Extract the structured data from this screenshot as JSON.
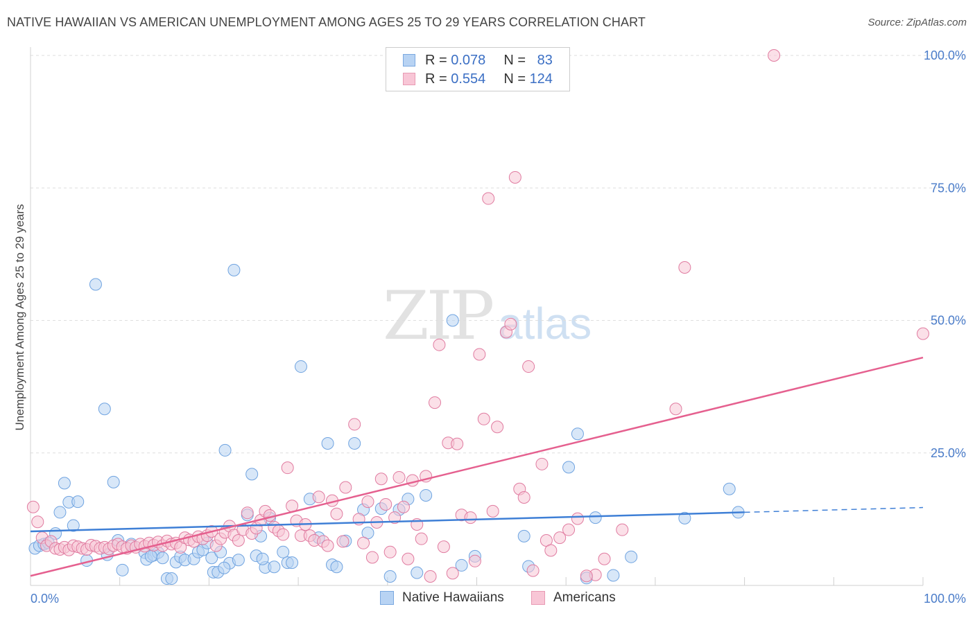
{
  "title": "NATIVE HAWAIIAN VS AMERICAN UNEMPLOYMENT AMONG AGES 25 TO 29 YEARS CORRELATION CHART",
  "source": "Source: ZipAtlas.com",
  "watermark": {
    "zip": "ZIP",
    "atlas": "atlas"
  },
  "legend": {
    "r_label": "R =",
    "n_label": "N =",
    "rows": [
      {
        "r": "0.078",
        "n": "83",
        "fill": "#b8d3f3",
        "stroke": "#7aa8e0"
      },
      {
        "r": "0.554",
        "n": "124",
        "fill": "#f8c6d6",
        "stroke": "#e89ab3"
      }
    ]
  },
  "bottom_legend": [
    {
      "label": "Native Hawaiians",
      "fill": "#b8d3f3",
      "stroke": "#7aa8e0"
    },
    {
      "label": "Americans",
      "fill": "#f8c6d6",
      "stroke": "#e89ab3"
    }
  ],
  "chart_data": {
    "type": "scatter",
    "title": "NATIVE HAWAIIAN VS AMERICAN UNEMPLOYMENT AMONG AGES 25 TO 29 YEARS CORRELATION CHART",
    "xlabel": "",
    "ylabel": "Unemployment Among Ages 25 to 29 years",
    "xlim": [
      0,
      100
    ],
    "ylim": [
      0,
      100
    ],
    "x_tick_labels": [
      "0.0%",
      "100.0%"
    ],
    "y_ticks": [
      25,
      50,
      75,
      100
    ],
    "y_tick_labels": [
      "25.0%",
      "50.0%",
      "75.0%",
      "100.0%"
    ],
    "grid": true,
    "legend_position": "top-center",
    "series": [
      {
        "name": "Native Hawaiians",
        "color": "#6fa3e0",
        "fill": "#b8d3f3",
        "trend": {
          "x0": 0,
          "y0": 10.2,
          "x1": 80,
          "y1": 13.8,
          "dash_to_x": 100,
          "dash_to_y": 14.7,
          "color": "#3e7fd6"
        },
        "points": [
          [
            0.5,
            7.0
          ],
          [
            1.0,
            7.5
          ],
          [
            1.5,
            7.8
          ],
          [
            2.0,
            8.0
          ],
          [
            2.8,
            9.8
          ],
          [
            3.3,
            13.8
          ],
          [
            3.8,
            19.3
          ],
          [
            4.3,
            15.7
          ],
          [
            4.8,
            11.3
          ],
          [
            5.3,
            15.8
          ],
          [
            6.3,
            4.7
          ],
          [
            7.3,
            56.8
          ],
          [
            8.3,
            33.3
          ],
          [
            8.6,
            5.8
          ],
          [
            9.3,
            19.5
          ],
          [
            9.8,
            8.5
          ],
          [
            10.3,
            2.9
          ],
          [
            11.3,
            7.8
          ],
          [
            12.8,
            6.2
          ],
          [
            13.0,
            4.9
          ],
          [
            13.8,
            5.7
          ],
          [
            14.3,
            6.2
          ],
          [
            14.8,
            5.2
          ],
          [
            15.3,
            1.3
          ],
          [
            15.8,
            1.3
          ],
          [
            16.3,
            4.4
          ],
          [
            16.8,
            5.4
          ],
          [
            17.3,
            4.8
          ],
          [
            18.3,
            5.0
          ],
          [
            18.8,
            6.3
          ],
          [
            19.3,
            6.7
          ],
          [
            19.8,
            8.0
          ],
          [
            20.3,
            5.2
          ],
          [
            20.5,
            2.5
          ],
          [
            21.0,
            2.5
          ],
          [
            21.3,
            6.3
          ],
          [
            21.8,
            25.5
          ],
          [
            22.3,
            4.2
          ],
          [
            22.8,
            59.5
          ],
          [
            23.3,
            4.8
          ],
          [
            24.3,
            13.3
          ],
          [
            24.8,
            21.0
          ],
          [
            25.3,
            5.6
          ],
          [
            25.8,
            9.3
          ],
          [
            26.3,
            3.4
          ],
          [
            26.8,
            12.7
          ],
          [
            27.3,
            3.5
          ],
          [
            28.3,
            6.3
          ],
          [
            28.8,
            4.3
          ],
          [
            29.3,
            4.3
          ],
          [
            30.3,
            41.3
          ],
          [
            31.3,
            16.3
          ],
          [
            32.3,
            9.0
          ],
          [
            33.3,
            26.8
          ],
          [
            33.8,
            3.9
          ],
          [
            34.3,
            3.5
          ],
          [
            35.3,
            8.4
          ],
          [
            36.3,
            26.8
          ],
          [
            37.3,
            14.3
          ],
          [
            37.8,
            9.9
          ],
          [
            39.3,
            14.5
          ],
          [
            40.3,
            1.7
          ],
          [
            41.3,
            14.3
          ],
          [
            42.3,
            16.3
          ],
          [
            43.3,
            2.4
          ],
          [
            44.3,
            17.0
          ],
          [
            47.3,
            50.0
          ],
          [
            48.3,
            3.8
          ],
          [
            49.8,
            5.5
          ],
          [
            55.3,
            9.3
          ],
          [
            55.8,
            3.6
          ],
          [
            60.3,
            22.3
          ],
          [
            61.3,
            28.6
          ],
          [
            62.3,
            1.4
          ],
          [
            63.3,
            12.8
          ],
          [
            65.3,
            1.9
          ],
          [
            67.3,
            5.4
          ],
          [
            73.3,
            12.7
          ],
          [
            78.3,
            18.2
          ],
          [
            79.3,
            13.8
          ],
          [
            13.5,
            5.5
          ],
          [
            21.7,
            3.3
          ],
          [
            26.0,
            5.0
          ]
        ]
      },
      {
        "name": "Americans",
        "color": "#e07ba0",
        "fill": "#f8c6d6",
        "trend": {
          "x0": 0,
          "y0": 1.8,
          "x1": 100,
          "y1": 43.0,
          "color": "#e5608f"
        },
        "points": [
          [
            0.3,
            14.8
          ],
          [
            0.8,
            12.0
          ],
          [
            1.3,
            9.0
          ],
          [
            1.8,
            7.5
          ],
          [
            2.3,
            8.3
          ],
          [
            2.8,
            7.0
          ],
          [
            3.3,
            6.8
          ],
          [
            3.8,
            7.2
          ],
          [
            4.3,
            6.7
          ],
          [
            4.8,
            7.5
          ],
          [
            5.3,
            7.3
          ],
          [
            5.8,
            7.0
          ],
          [
            6.3,
            6.8
          ],
          [
            6.8,
            7.6
          ],
          [
            7.3,
            7.4
          ],
          [
            7.8,
            7.0
          ],
          [
            8.3,
            7.2
          ],
          [
            8.8,
            6.9
          ],
          [
            9.3,
            7.5
          ],
          [
            9.8,
            7.8
          ],
          [
            10.3,
            7.3
          ],
          [
            10.8,
            7.0
          ],
          [
            11.3,
            7.5
          ],
          [
            11.8,
            7.2
          ],
          [
            12.3,
            7.8
          ],
          [
            12.8,
            7.4
          ],
          [
            13.3,
            8.0
          ],
          [
            13.8,
            7.6
          ],
          [
            14.3,
            8.2
          ],
          [
            14.8,
            7.5
          ],
          [
            15.3,
            8.4
          ],
          [
            15.8,
            7.8
          ],
          [
            16.3,
            8.0
          ],
          [
            16.8,
            7.2
          ],
          [
            17.3,
            9.0
          ],
          [
            17.8,
            8.6
          ],
          [
            18.3,
            8.3
          ],
          [
            18.8,
            9.2
          ],
          [
            19.3,
            8.8
          ],
          [
            19.8,
            9.4
          ],
          [
            20.3,
            10.2
          ],
          [
            20.8,
            7.5
          ],
          [
            21.3,
            8.8
          ],
          [
            21.8,
            10.0
          ],
          [
            22.3,
            11.2
          ],
          [
            22.8,
            9.5
          ],
          [
            23.3,
            8.5
          ],
          [
            23.8,
            10.5
          ],
          [
            24.3,
            13.7
          ],
          [
            24.8,
            9.8
          ],
          [
            25.3,
            10.8
          ],
          [
            25.8,
            12.3
          ],
          [
            26.3,
            14.0
          ],
          [
            26.8,
            13.2
          ],
          [
            27.3,
            11.0
          ],
          [
            27.8,
            10.3
          ],
          [
            28.3,
            9.6
          ],
          [
            28.8,
            22.2
          ],
          [
            29.3,
            15.0
          ],
          [
            29.8,
            12.2
          ],
          [
            30.3,
            9.4
          ],
          [
            30.8,
            11.5
          ],
          [
            31.3,
            9.4
          ],
          [
            31.8,
            8.5
          ],
          [
            32.3,
            16.7
          ],
          [
            32.8,
            8.3
          ],
          [
            33.3,
            7.5
          ],
          [
            33.8,
            16.0
          ],
          [
            34.3,
            13.5
          ],
          [
            35.3,
            18.5
          ],
          [
            36.3,
            30.4
          ],
          [
            36.8,
            12.5
          ],
          [
            37.3,
            8.0
          ],
          [
            37.8,
            15.8
          ],
          [
            38.3,
            5.3
          ],
          [
            38.8,
            11.9
          ],
          [
            39.3,
            20.1
          ],
          [
            39.8,
            15.3
          ],
          [
            40.3,
            6.3
          ],
          [
            40.8,
            12.8
          ],
          [
            41.3,
            20.4
          ],
          [
            41.8,
            14.8
          ],
          [
            42.3,
            5.0
          ],
          [
            42.8,
            19.8
          ],
          [
            43.3,
            11.5
          ],
          [
            43.8,
            8.8
          ],
          [
            44.3,
            20.6
          ],
          [
            45.3,
            34.5
          ],
          [
            45.8,
            45.4
          ],
          [
            46.3,
            7.3
          ],
          [
            46.8,
            26.9
          ],
          [
            47.3,
            2.3
          ],
          [
            47.8,
            26.7
          ],
          [
            48.3,
            13.3
          ],
          [
            49.3,
            12.8
          ],
          [
            49.8,
            4.6
          ],
          [
            50.3,
            43.6
          ],
          [
            50.8,
            31.4
          ],
          [
            51.3,
            73.0
          ],
          [
            52.3,
            29.9
          ],
          [
            53.3,
            47.8
          ],
          [
            53.8,
            49.3
          ],
          [
            54.3,
            77.0
          ],
          [
            54.8,
            18.2
          ],
          [
            55.3,
            16.6
          ],
          [
            55.8,
            41.3
          ],
          [
            56.3,
            2.8
          ],
          [
            57.3,
            22.9
          ],
          [
            57.8,
            8.5
          ],
          [
            58.3,
            6.6
          ],
          [
            59.3,
            9.0
          ],
          [
            60.3,
            10.5
          ],
          [
            61.3,
            12.6
          ],
          [
            63.3,
            2.0
          ],
          [
            64.3,
            5.0
          ],
          [
            66.3,
            10.5
          ],
          [
            72.3,
            33.3
          ],
          [
            73.3,
            60.0
          ],
          [
            83.3,
            100.0
          ],
          [
            100.0,
            47.5
          ],
          [
            62.3,
            1.8
          ],
          [
            35.0,
            8.3
          ],
          [
            44.8,
            1.7
          ],
          [
            51.8,
            14.0
          ]
        ]
      }
    ]
  }
}
